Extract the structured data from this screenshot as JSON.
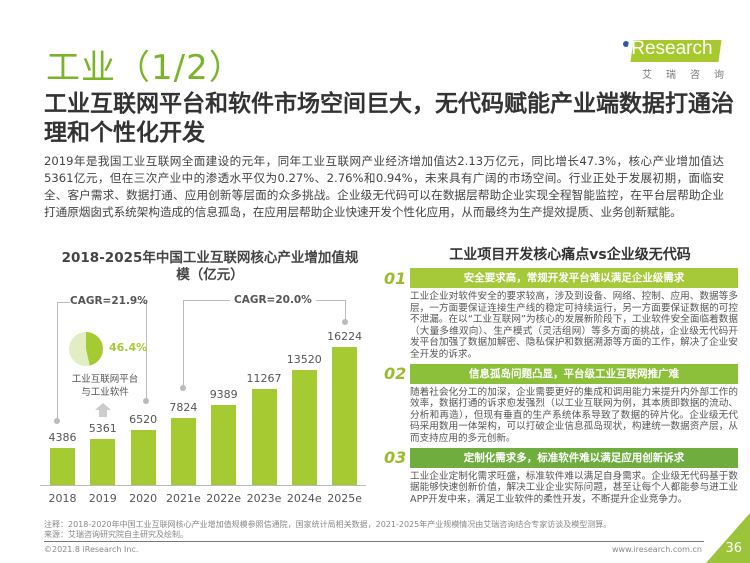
{
  "header": {
    "title": "工业（1/2）",
    "logo_text": "iResearch",
    "logo_cn": "艾瑞咨询",
    "subtitle": "工业互联网平台和软件市场空间巨大，无代码赋能产业端数据打通治理和个性化开发"
  },
  "body": "2019年是我国工业互联网全面建设的元年，同年工业互联网产业经济增加值达2.13万亿元，同比增长47.3%，核心产业增加值达5361亿元，但在三次产业中的渗透水平仅为0.27%、2.76%和0.94%，未来具有广阔的市场空间。行业正处于发展初期，面临安全、客户需求、数据打通、应用创新等层面的众多挑战。企业级无代码可以在数据层帮助企业实现全程智能监控，在平台层帮助企业打通原烟囱式系统架构造成的信息孤岛，在应用层帮助企业快速开发个性化应用，从而最终为生产提效提质、业务创新赋能。",
  "chart_data": {
    "type": "bar",
    "title": "2018-2025年中国工业互联网核心产业增加值规模（亿元）",
    "categories": [
      "2018",
      "2019",
      "2020",
      "2021e",
      "2022e",
      "2023e",
      "2024e",
      "2025e"
    ],
    "values": [
      4386,
      5361,
      6520,
      7824,
      9389,
      11267,
      13520,
      16224
    ],
    "bar_color": "#a6cb32",
    "annotations": {
      "cagr1": "CAGR=21.9%",
      "cagr2": "CAGR=20.0%",
      "pie_pct": "46.4%",
      "pie_value": 46.4,
      "pie_label": "工业互联网平台与工业软件"
    }
  },
  "right": {
    "title": "工业项目开发核心痛点vs企业级无代码",
    "items": [
      {
        "num": "01",
        "heading": "安全要求高，常规开发平台难以满足企业级需求",
        "text": "工业企业对软件安全的要求较高，涉及到设备、网络、控制、应用、数据等多层，一方面要保证连接生产线的稳定可持续运行，另一方面要保证数据的可控不泄漏。在以“工业互联网”为核心的发展新阶段下，工业软件安全面临着数据（大量多维双向）、生产模式（灵活组网）等多方面的挑战，企业级无代码开发平台加强了数据加解密、隐私保护和数据溯源等方面的工作，解决了企业安全开发的诉求。"
      },
      {
        "num": "02",
        "heading": "信息孤岛问题凸显，平台级工业互联网推广难",
        "text": "随着社会化分工的加深，企业需要更好的集成和调用能力来提升内外部工作的效率，数据打通的诉求愈发强烈（以工业互联网为例，其本质即数据的流动、分析和再造），但现有垂直的生产系统体系导致了数据的碎片化。企业级无代码采用数用一体架构，可以打破企业信息孤岛现状，构建统一数据资产层，从而支持应用的多元创新。"
      },
      {
        "num": "03",
        "heading": "定制化需求多，标准软件难以满足应用创新诉求",
        "text": "工业企业定制化需求旺盛，标准软件难以满足自身需求。企业级无代码基于数据能够快速创新价值，解决工业企业实际问题，甚至让每个人都能参与进工业APP开发中来，满足工业软件的柔性开发，不断提升企业竞争力。"
      }
    ]
  },
  "footer": {
    "note": "注释：2018-2020年中国工业互联网核心产业增加值规模参照信通院，国家统计局相关数据，2021-2025年产业规模情况由艾瑞咨询结合专家访谈及模型测算。",
    "source": "来源：艾瑞咨询研究院自主研究及绘制。",
    "copyright": "©2021.8 iResearch Inc.",
    "url": "www.iresearch.com.cn",
    "page": "36"
  }
}
